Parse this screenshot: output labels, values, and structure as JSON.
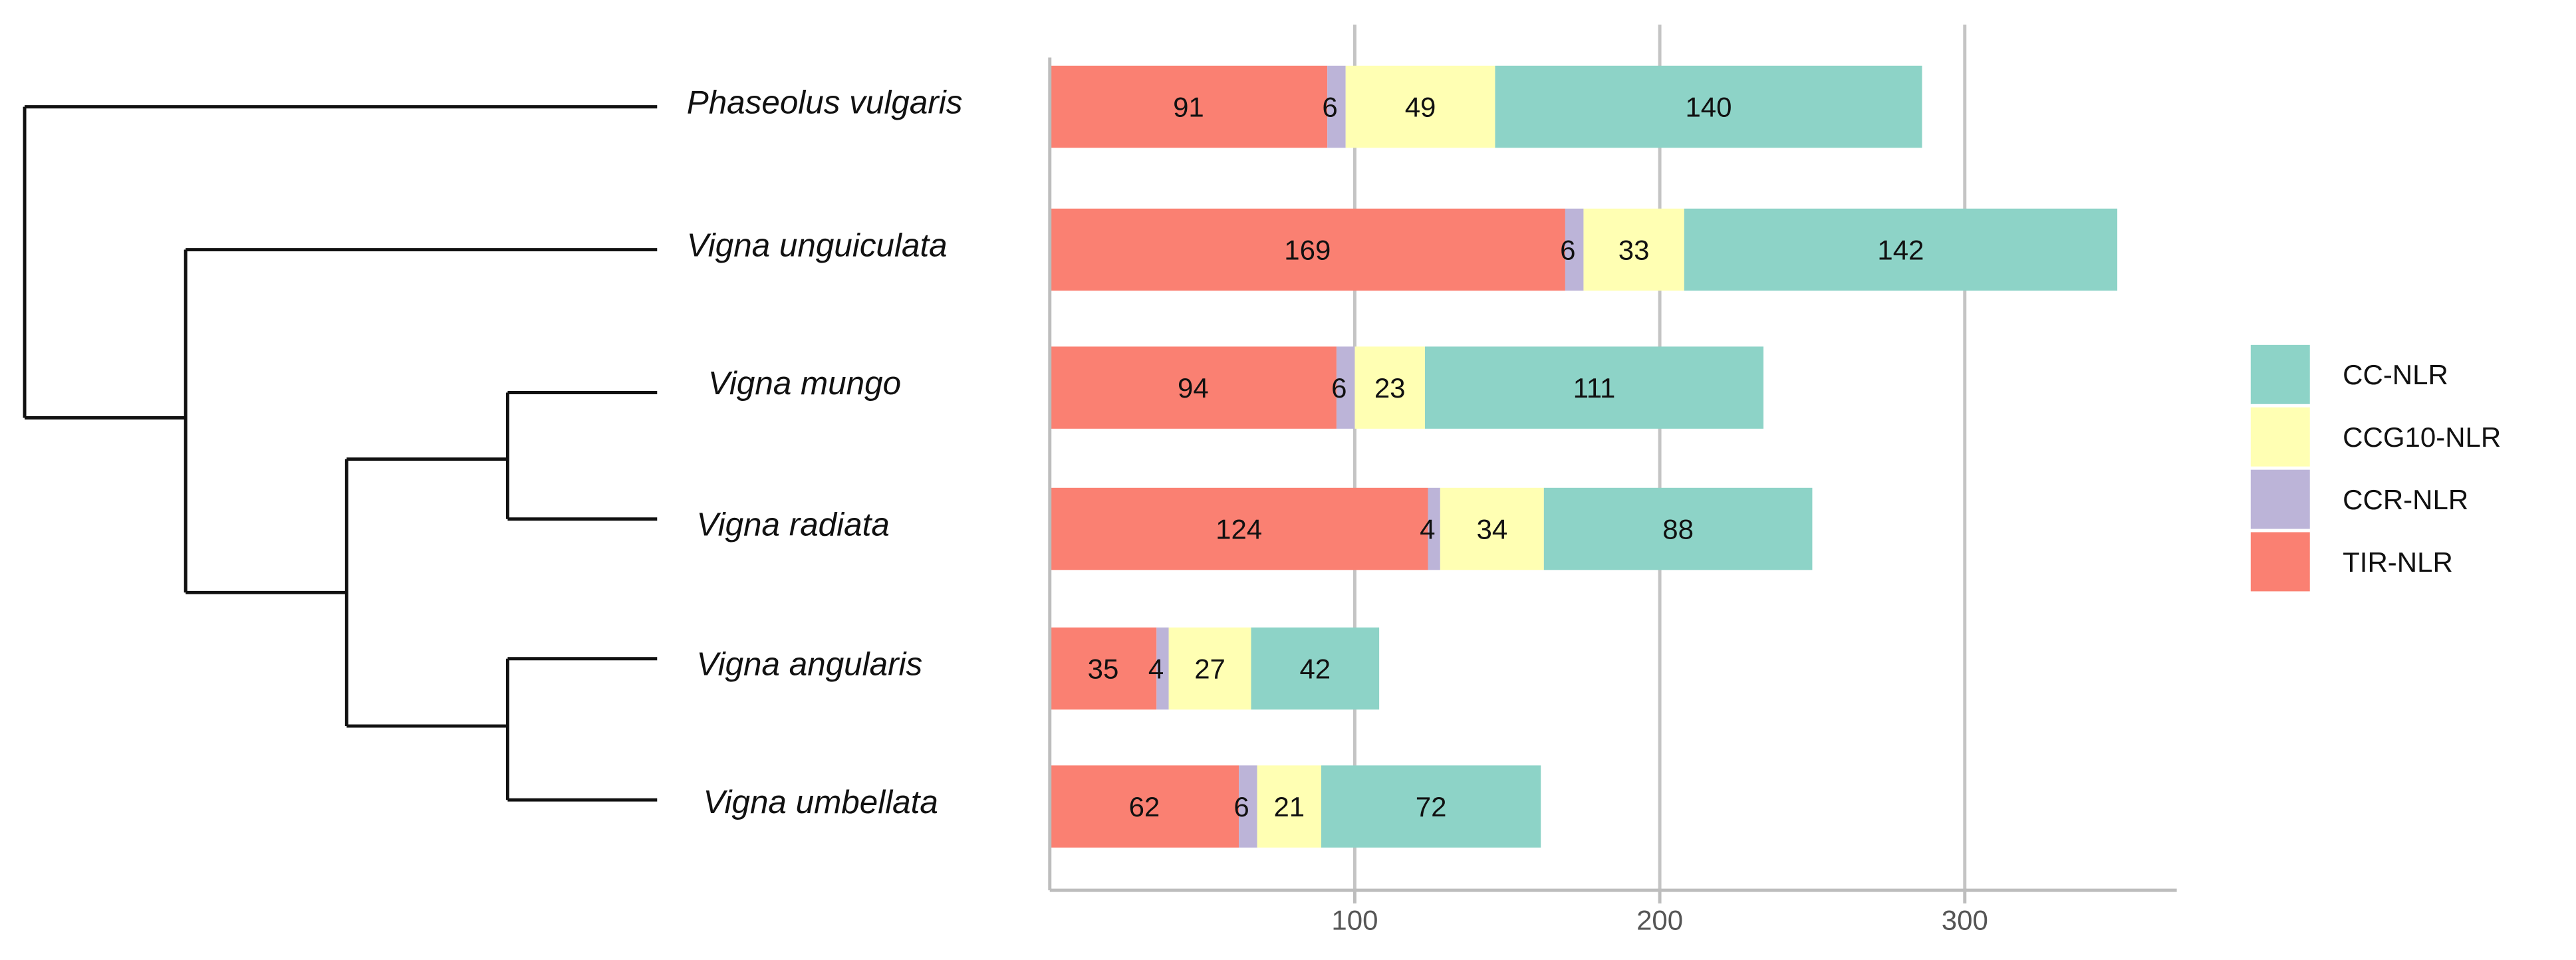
{
  "chart_data": {
    "type": "bar",
    "orientation": "horizontal",
    "stacked": true,
    "title": "",
    "xlabel": "",
    "ylabel": "",
    "xlim": [
      0,
      370
    ],
    "xticks": [
      100,
      200,
      300
    ],
    "tick_labels": [
      "100",
      "200",
      "300"
    ],
    "grid": true,
    "legend_position": "right",
    "categories": [
      "Phaseolus vulgaris",
      "Vigna unguiculata",
      "Vigna mungo",
      "Vigna radiata",
      "Vigna angularis",
      "Vigna umbellata"
    ],
    "series": [
      {
        "name": "TIR-NLR",
        "color": "#FA8072",
        "values": [
          91,
          169,
          94,
          124,
          35,
          62
        ],
        "labels": [
          "91",
          "169",
          "94",
          "124",
          "35",
          "62"
        ]
      },
      {
        "name": "CCR-NLR",
        "color": "#BCB4D8",
        "values": [
          6,
          6,
          6,
          4,
          4,
          6
        ],
        "labels": [
          "6",
          "6",
          "6",
          "4",
          "4",
          "6"
        ]
      },
      {
        "name": "CCG10-NLR",
        "color": "#FFFFB3",
        "values": [
          49,
          33,
          23,
          34,
          27,
          21
        ],
        "labels": [
          "49",
          "33",
          "23",
          "34",
          "27",
          "21"
        ]
      },
      {
        "name": "CC-NLR",
        "color": "#8DD3C7",
        "values": [
          140,
          142,
          111,
          88,
          42,
          72
        ],
        "labels": [
          "140",
          "142",
          "111",
          "88",
          "42",
          "72"
        ]
      }
    ],
    "legend": [
      {
        "name": "CC-NLR",
        "color": "#8DD3C7"
      },
      {
        "name": "CCG10-NLR",
        "color": "#FFFFB3"
      },
      {
        "name": "CCR-NLR",
        "color": "#BCB4D8"
      },
      {
        "name": "TIR-NLR",
        "color": "#FA8072"
      }
    ],
    "tree": {
      "newick": "(Phaseolus vulgaris,(Vigna unguiculata,((Vigna mungo,Vigna radiata),(Vigna angularis,Vigna umbellata))));"
    }
  }
}
